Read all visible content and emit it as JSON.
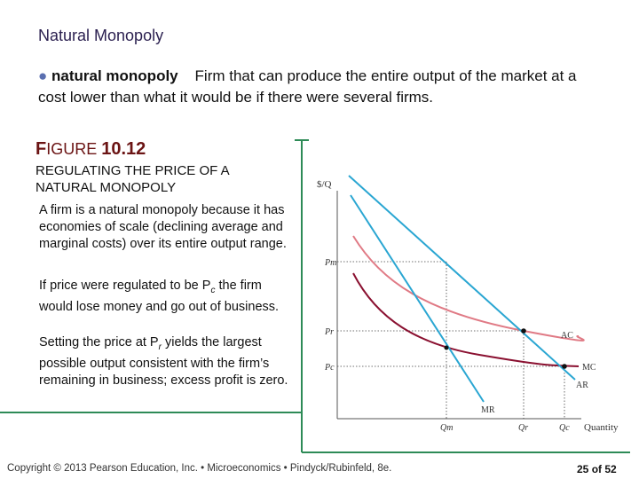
{
  "slide": {
    "title": "Natural Monopoly",
    "definition": {
      "bullet": "●",
      "term": "natural monopoly",
      "text": "Firm that can produce the entire output of the market at a cost lower than what it would be if there were several firms."
    },
    "figure_label_a": "F",
    "figure_label_b": "IGURE ",
    "figure_label_num": "10.12",
    "figure_title": "REGULATING THE PRICE OF A NATURAL MONOPOLY",
    "caption1": "A firm is a natural monopoly because it has economies of scale (declining average and marginal costs) over its entire output range.",
    "caption2_a": "If price were regulated to be P",
    "caption2_sub": "c",
    "caption2_b": " the firm would lose money and go out of business.",
    "caption3_a": "Setting the price at P",
    "caption3_sub": "r",
    "caption3_b": " yields the largest possible output consistent with the firm’s remaining in business; excess profit is zero.",
    "footer": "Copyright © 2013  Pearson Education, Inc. • Microeconomics • Pindyck/Rubinfeld, 8e.",
    "page_current": "25",
    "page_sep": " of ",
    "page_total": "52"
  },
  "diagram": {
    "y_axis_label": "$/Q",
    "x_axis_label": "Quantity",
    "price_labels": {
      "pm": "Pm",
      "pr": "Pr",
      "pc": "Pc"
    },
    "quantity_labels": {
      "qm": "Qm",
      "qr": "Qr",
      "qc": "Qc"
    },
    "curve_labels": {
      "ac": "AC",
      "mc": "MC",
      "ar": "AR",
      "mr": "MR"
    },
    "colors": {
      "demand": "#2aa6d2",
      "ac": "#e07a85",
      "mc": "#8a1030",
      "frame": "#2e8b57",
      "guides": "#444444",
      "title": "#6b1414"
    }
  }
}
